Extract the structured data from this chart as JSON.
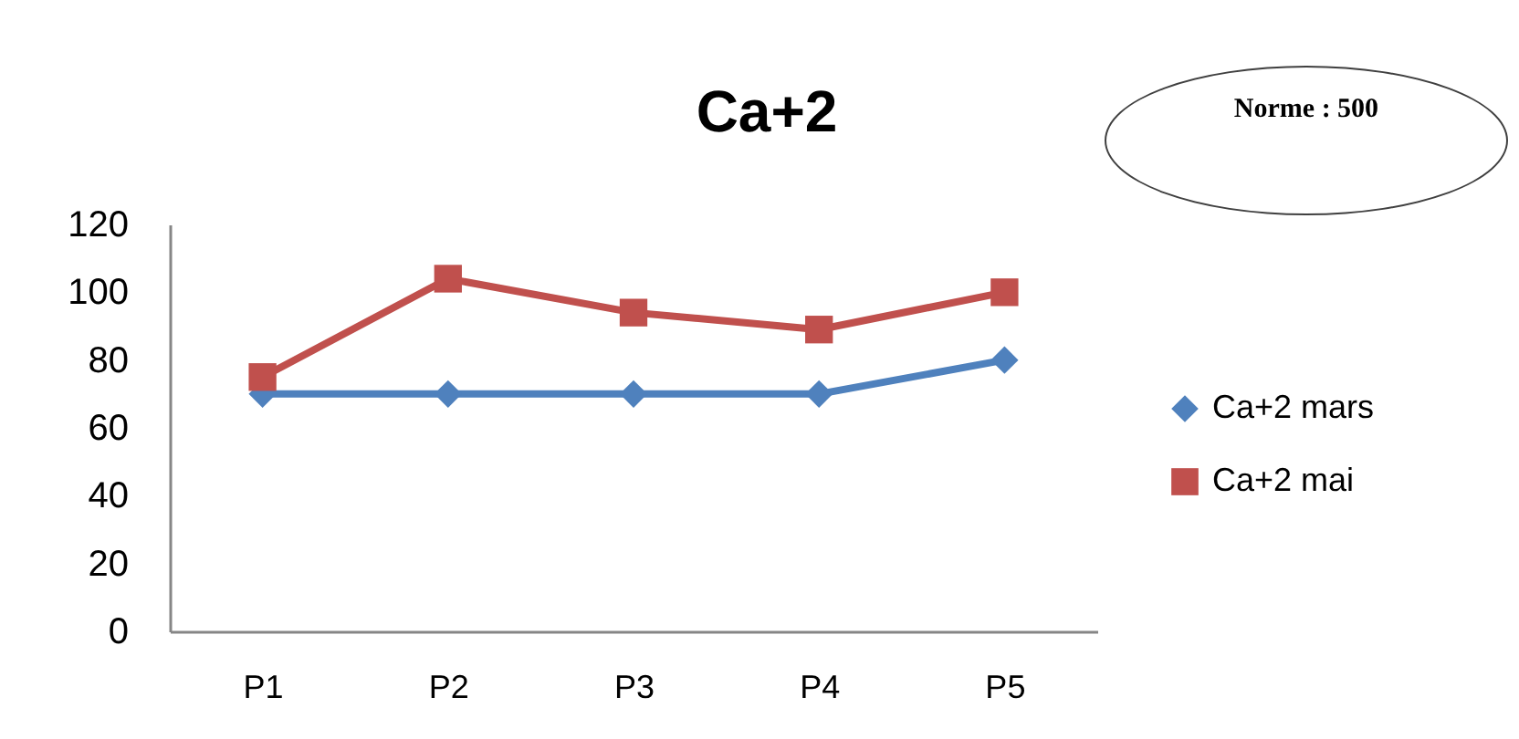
{
  "chart_data": {
    "type": "line",
    "title": "Ca+2",
    "categories": [
      "P1",
      "P2",
      "P3",
      "P4",
      "P5"
    ],
    "series": [
      {
        "name": "Ca+2 mars",
        "color": "#4f81bd",
        "marker": "diamond",
        "values": [
          70,
          70,
          70,
          70,
          80
        ]
      },
      {
        "name": "Ca+2 mai",
        "color": "#c0504d",
        "marker": "square",
        "values": [
          75,
          104,
          94,
          89,
          100
        ]
      }
    ],
    "ylim": [
      0,
      120
    ],
    "yticks": [
      0,
      20,
      40,
      60,
      80,
      100,
      120
    ],
    "grid": false,
    "legend": "right",
    "annotations": [
      "Norme : 500"
    ]
  }
}
